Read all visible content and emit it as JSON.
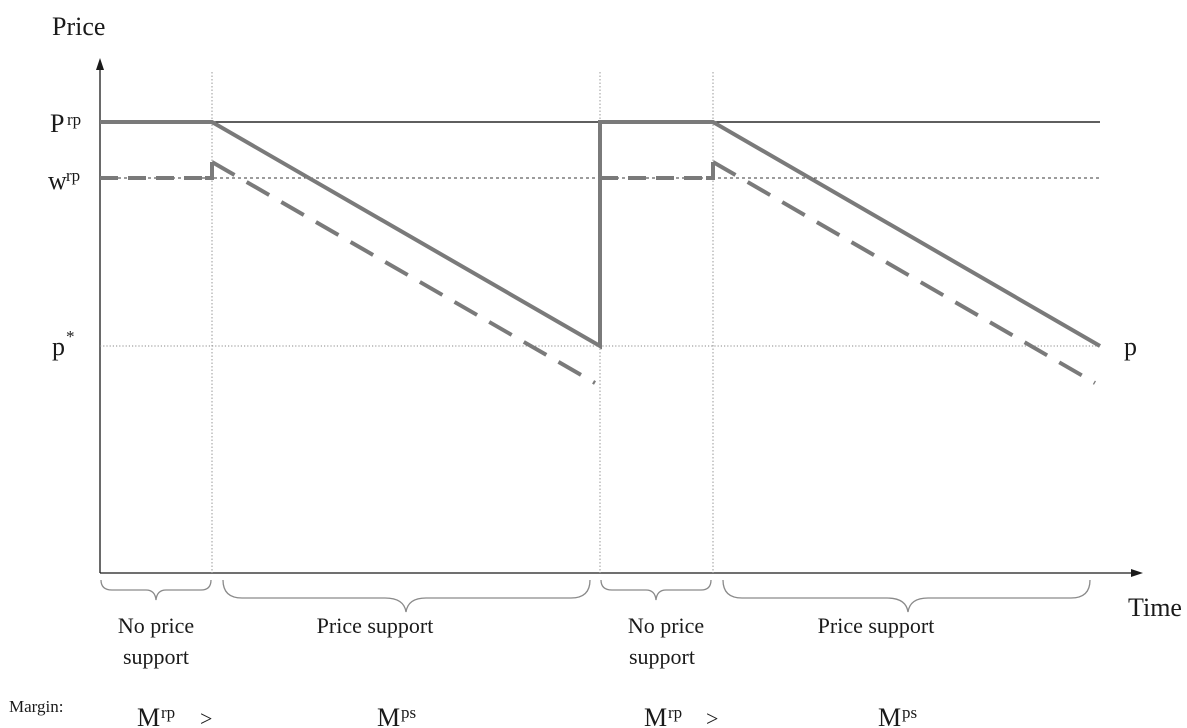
{
  "axes": {
    "y_label": "Price",
    "x_label": "Time"
  },
  "levels": {
    "retail_price": {
      "base": "P",
      "sup": "rp"
    },
    "wholesale_price": {
      "base": "w",
      "sup": "rp"
    },
    "p_star": {
      "base": "p",
      "sup": "*"
    },
    "p_right": "p"
  },
  "phases": [
    {
      "label_line1": "No price",
      "label_line2": "support"
    },
    {
      "label_line1": "Price support"
    },
    {
      "label_line1": "No price",
      "label_line2": "support"
    },
    {
      "label_line1": "Price support"
    }
  ],
  "margin": {
    "caption": "Margin:",
    "m_rp": {
      "base": "M",
      "sup": "rp"
    },
    "gt": ">",
    "m_ps": {
      "base": "M",
      "sup": "ps"
    }
  },
  "colors": {
    "axis": "#1a1a1a",
    "thick_line": "#7a7a7a",
    "thin_line": "#2a2a2a",
    "guide": "#9a9a9a",
    "brace": "#8a8a8a"
  }
}
